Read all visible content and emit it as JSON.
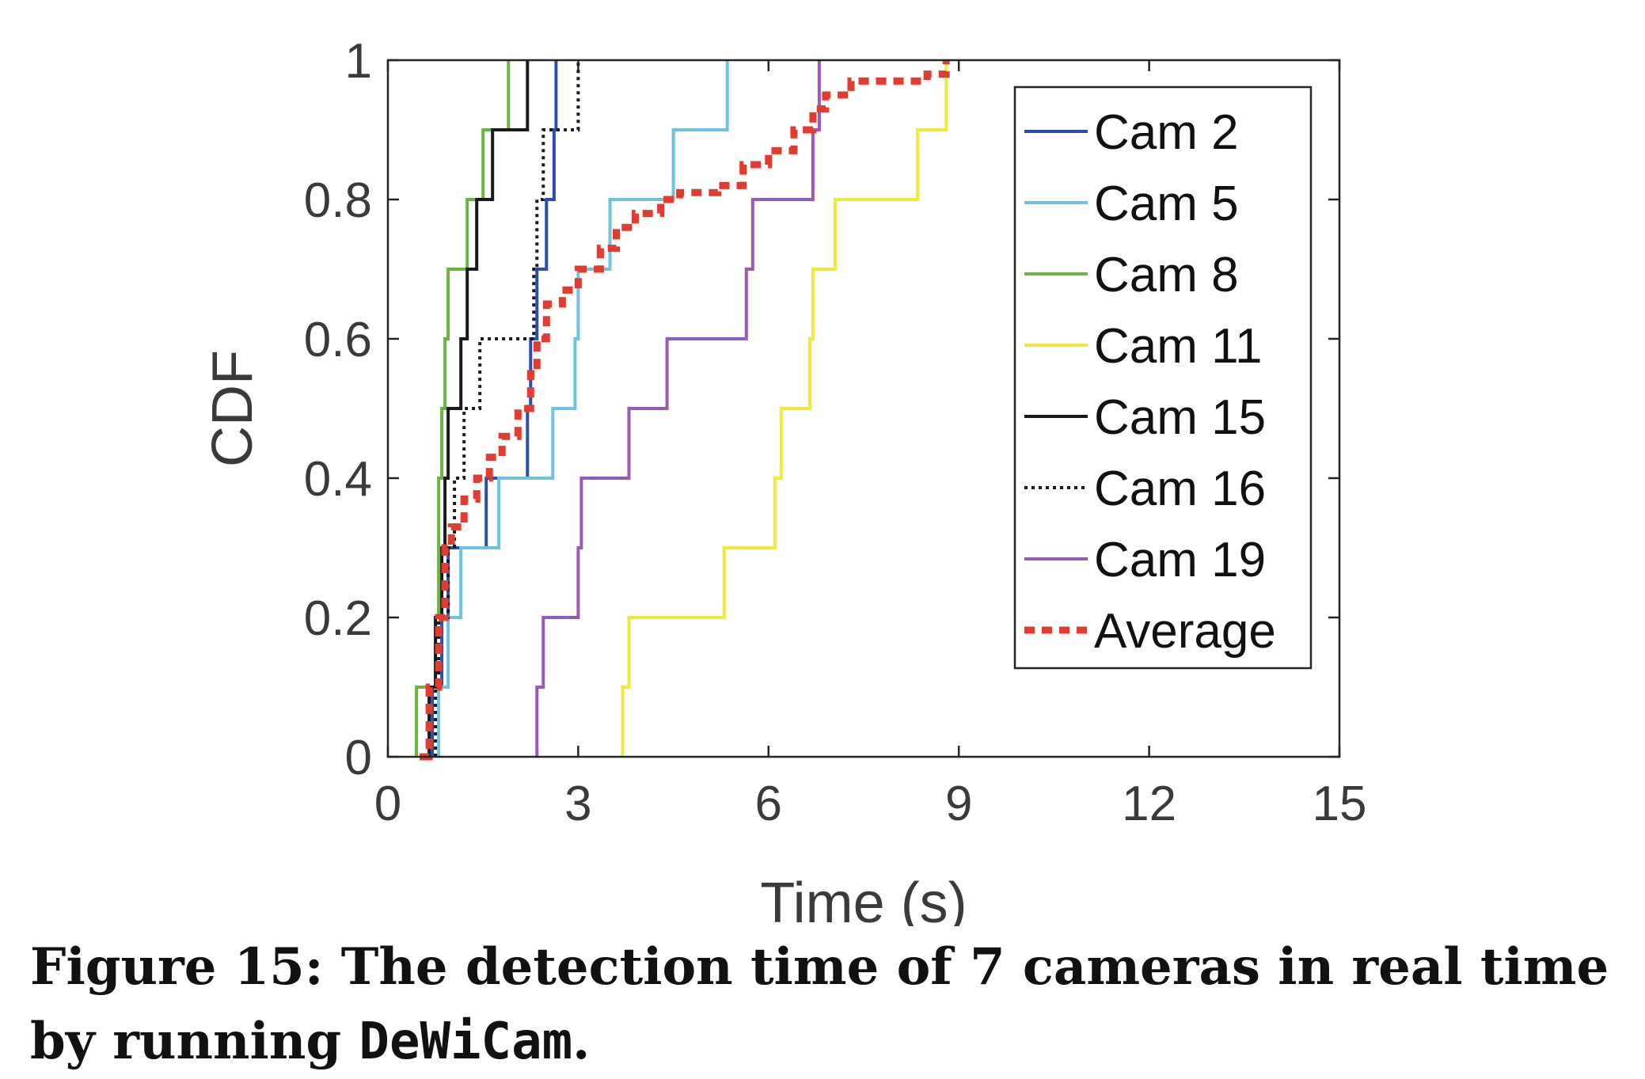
{
  "chart_data": {
    "type": "line",
    "step": true,
    "xlabel": "Time (s)",
    "ylabel": "CDF",
    "xlim": [
      0,
      15
    ],
    "ylim": [
      0,
      1
    ],
    "xticks": [
      0,
      3,
      6,
      9,
      12,
      15
    ],
    "yticks": [
      0,
      0.2,
      0.4,
      0.6,
      0.8,
      1
    ],
    "ytick_labels": [
      "0",
      "0.2",
      "0.4",
      "0.6",
      "0.8",
      "1"
    ],
    "grid": false,
    "legend_position": "top-right",
    "series": [
      {
        "name": "Cam 2",
        "color": "#2b4fa8",
        "dash": "solid",
        "x": [
          0.7,
          0.85,
          0.95,
          1.1,
          1.55,
          2.2,
          2.25,
          2.35,
          2.5,
          2.62,
          2.65
        ],
        "y": [
          0.1,
          0.2,
          0.3,
          0.3,
          0.4,
          0.5,
          0.6,
          0.7,
          0.8,
          0.9,
          1.0
        ]
      },
      {
        "name": "Cam 5",
        "color": "#6fc3dd",
        "dash": "solid",
        "x": [
          0.8,
          0.95,
          1.15,
          1.75,
          2.6,
          2.95,
          3.0,
          3.5,
          4.5,
          5.35
        ],
        "y": [
          0.1,
          0.2,
          0.3,
          0.4,
          0.5,
          0.6,
          0.7,
          0.8,
          0.9,
          1.0
        ]
      },
      {
        "name": "Cam 8",
        "color": "#6db33f",
        "dash": "solid",
        "x": [
          0.45,
          0.75,
          0.8,
          0.85,
          0.9,
          0.95,
          1.25,
          1.5,
          1.9
        ],
        "y": [
          0.1,
          0.2,
          0.4,
          0.5,
          0.6,
          0.7,
          0.8,
          0.9,
          1.0
        ]
      },
      {
        "name": "Cam 11",
        "color": "#f2ea3a",
        "dash": "solid",
        "x": [
          3.7,
          3.8,
          5.3,
          6.1,
          6.2,
          6.65,
          6.7,
          7.05,
          8.35,
          8.8
        ],
        "y": [
          0.1,
          0.2,
          0.3,
          0.4,
          0.5,
          0.6,
          0.7,
          0.8,
          0.9,
          1.0
        ]
      },
      {
        "name": "Cam 15",
        "color": "#1a1a1a",
        "dash": "solid",
        "x": [
          0.65,
          0.75,
          0.85,
          0.9,
          0.95,
          1.15,
          1.25,
          1.4,
          1.65,
          2.2
        ],
        "y": [
          0.1,
          0.2,
          0.3,
          0.4,
          0.5,
          0.6,
          0.7,
          0.8,
          0.9,
          1.0
        ]
      },
      {
        "name": "Cam 16",
        "color": "#1a1a1a",
        "dash": "dotted",
        "x": [
          0.75,
          0.8,
          0.95,
          1.05,
          1.2,
          1.45,
          2.3,
          2.35,
          2.45,
          3.0
        ],
        "y": [
          0.1,
          0.2,
          0.3,
          0.4,
          0.5,
          0.6,
          0.7,
          0.8,
          0.9,
          1.0
        ]
      },
      {
        "name": "Cam 19",
        "color": "#9b59b6",
        "dash": "solid",
        "x": [
          2.35,
          2.45,
          3.0,
          3.05,
          3.8,
          4.4,
          5.65,
          5.75,
          6.7,
          6.8
        ],
        "y": [
          0.1,
          0.2,
          0.3,
          0.4,
          0.5,
          0.6,
          0.7,
          0.8,
          0.9,
          1.0
        ]
      },
      {
        "name": "Average",
        "color": "#e03c31",
        "dash": "dashed-thick",
        "x": [
          0.5,
          0.65,
          0.8,
          0.9,
          1.0,
          1.2,
          1.4,
          1.6,
          1.8,
          2.05,
          2.25,
          2.35,
          2.5,
          2.75,
          3.0,
          3.35,
          3.6,
          3.9,
          4.3,
          4.6,
          5.2,
          5.6,
          6.0,
          6.4,
          6.7,
          6.9,
          7.3,
          8.0,
          8.5,
          8.8
        ],
        "y": [
          0.0,
          0.1,
          0.2,
          0.3,
          0.33,
          0.37,
          0.4,
          0.43,
          0.46,
          0.5,
          0.55,
          0.6,
          0.65,
          0.67,
          0.7,
          0.73,
          0.76,
          0.78,
          0.8,
          0.81,
          0.82,
          0.85,
          0.87,
          0.9,
          0.93,
          0.95,
          0.97,
          0.97,
          0.98,
          1.0
        ]
      }
    ]
  },
  "caption": {
    "text": "Figure 15: The detection time of 7 cameras in real time by running ",
    "code": "DeWiCam",
    "end": "."
  }
}
